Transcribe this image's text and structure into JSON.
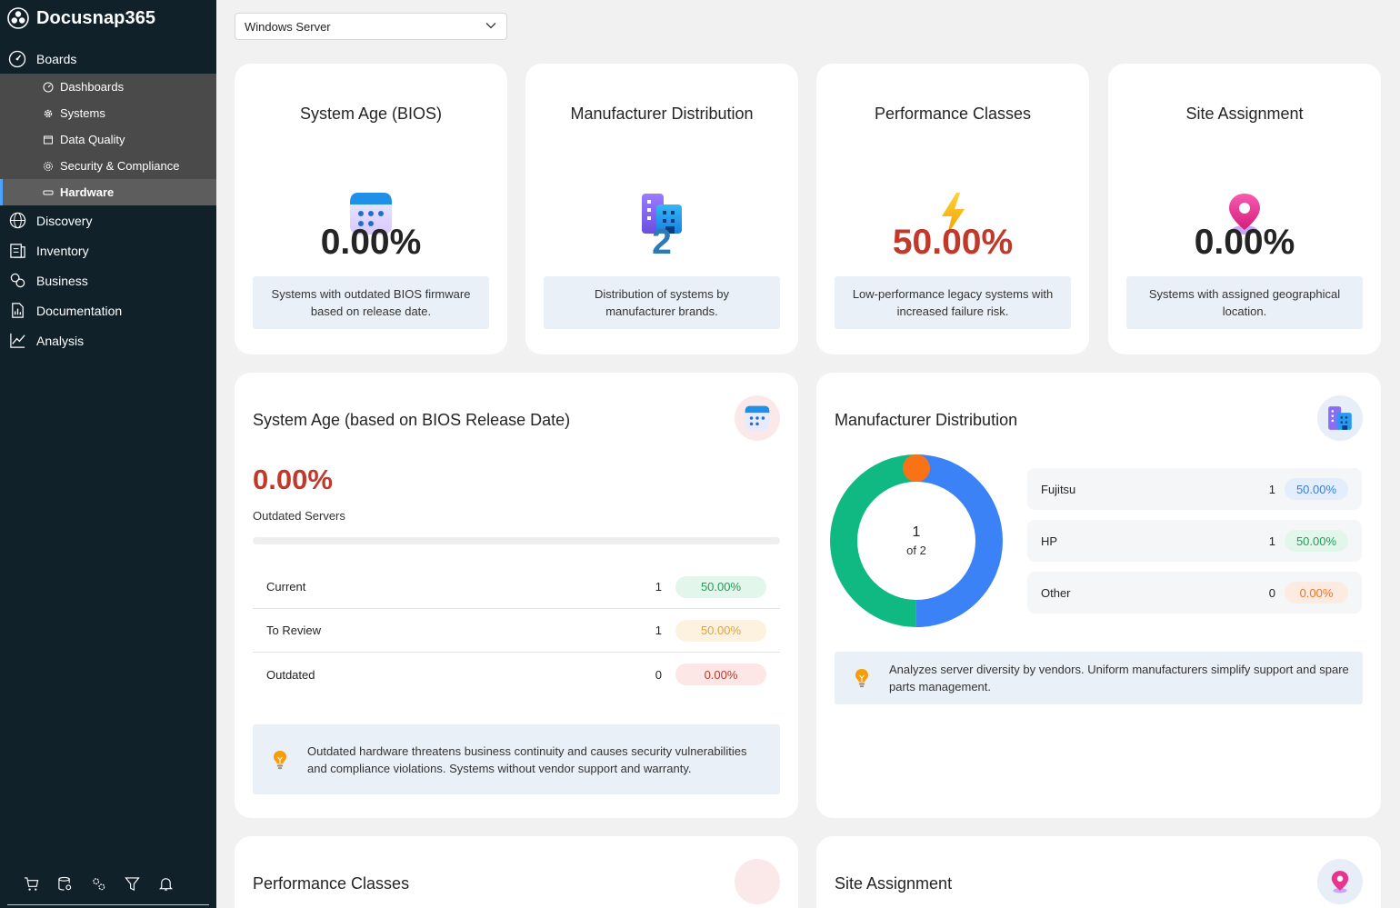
{
  "app": {
    "name": "Docusnap365"
  },
  "nav": {
    "boards": "Boards",
    "board_items": [
      "Dashboards",
      "Systems",
      "Data Quality",
      "Security & Compliance",
      "Hardware"
    ],
    "items": [
      "Discovery",
      "Inventory",
      "Business",
      "Documentation",
      "Analysis"
    ]
  },
  "filter": {
    "selected": "Windows Server"
  },
  "kpis": [
    {
      "title": "System Age (BIOS)",
      "value": "0.00%",
      "desc": "Systems with outdated BIOS firmware based on release date.",
      "color": "#242424"
    },
    {
      "title": "Manufacturer Distribution",
      "value": "2",
      "desc": "Distribution of systems by manufacturer brands.",
      "color": "#2e7ab5"
    },
    {
      "title": "Performance Classes",
      "value": "50.00%",
      "desc": "Low-performance legacy systems with increased failure risk.",
      "color": "#c0392b"
    },
    {
      "title": "Site Assignment",
      "value": "0.00%",
      "desc": "Systems with assigned geographical location.",
      "color": "#242424"
    }
  ],
  "system_age": {
    "title": "System Age (based on BIOS Release Date)",
    "value": "0.00%",
    "label": "Outdated Servers",
    "progress": 0,
    "rows": [
      {
        "label": "Current",
        "count": "1",
        "pct": "50.00%"
      },
      {
        "label": "To Review",
        "count": "1",
        "pct": "50.00%"
      },
      {
        "label": "Outdated",
        "count": "0",
        "pct": "0.00%"
      }
    ],
    "hint": "Outdated hardware threatens business continuity and causes security vulnerabilities and compliance violations. Systems without vendor support and warranty."
  },
  "manufacturer": {
    "title": "Manufacturer Distribution",
    "center_value": "1",
    "center_label": "of 2",
    "rows": [
      {
        "label": "Fujitsu",
        "count": "1",
        "pct": "50.00%"
      },
      {
        "label": "HP",
        "count": "1",
        "pct": "50.00%"
      },
      {
        "label": "Other",
        "count": "0",
        "pct": "0.00%"
      }
    ],
    "hint": "Analyzes server diversity by vendors. Uniform manufacturers simplify support and spare parts management.",
    "segments": [
      {
        "label": "Fujitsu",
        "value": 1,
        "color": "#3b82f6"
      },
      {
        "label": "HP",
        "value": 1,
        "color": "#10b981"
      },
      {
        "label": "Other",
        "value": 0,
        "color": "#f97316"
      }
    ]
  },
  "performance": {
    "title": "Performance Classes"
  },
  "site": {
    "title": "Site Assignment"
  }
}
